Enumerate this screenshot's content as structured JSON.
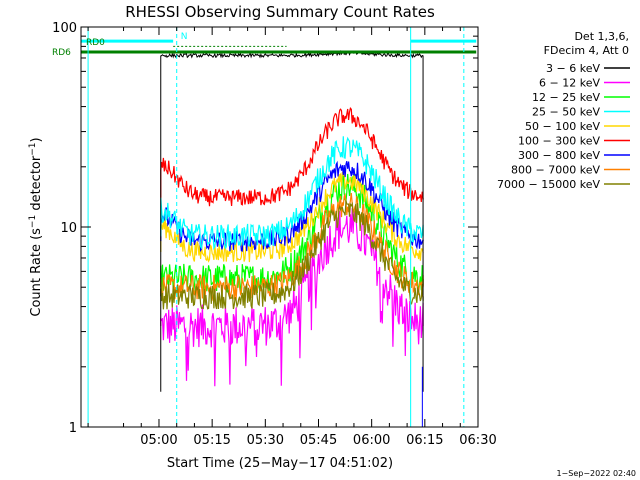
{
  "chart_data": {
    "type": "line",
    "title": "RHESSI Observing Summary Count Rates",
    "xlabel": "Start Time (25−May−17 04:51:02)",
    "ylabel_main": "Count Rate (s",
    "ylabel_sup": "−1",
    "ylabel_rest": " detector",
    "ylabel_sup2": "−1",
    "ylabel_close": ")",
    "footer": "1−Sep−2022 02:40",
    "y_scale": "log",
    "ylim": [
      1,
      100
    ],
    "xlim_minutes": [
      -22,
      90
    ],
    "x_ticks": [
      {
        "m": 0,
        "label": "05:00"
      },
      {
        "m": 15,
        "label": "05:15"
      },
      {
        "m": 30,
        "label": "05:30"
      },
      {
        "m": 45,
        "label": "05:45"
      },
      {
        "m": 60,
        "label": "06:00"
      },
      {
        "m": 75,
        "label": "06:15"
      },
      {
        "m": 90,
        "label": "06:30"
      }
    ],
    "y_ticks": [
      {
        "v": 1,
        "label": "1"
      },
      {
        "v": 10,
        "label": "10"
      },
      {
        "v": 100,
        "label": "100"
      }
    ],
    "legend_header": [
      "Det 1,3,6,",
      "FDecim 4, Att 0"
    ],
    "series": [
      {
        "name": "3 − 6 keV",
        "color": "#000000",
        "base": 72,
        "peak": 74,
        "noise": 0.02
      },
      {
        "name": "6 − 12 keV",
        "color": "#ff00ff",
        "base": 3.2,
        "peak": 10,
        "noise": 0.25
      },
      {
        "name": "12 − 25 keV",
        "color": "#00ff00",
        "base": 5.5,
        "peak": 16,
        "noise": 0.18
      },
      {
        "name": "25 − 50 keV",
        "color": "#00ffff",
        "base": 9,
        "peak": 25,
        "noise": 0.14
      },
      {
        "name": "50 − 100 keV",
        "color": "#ffd700",
        "base": 7.5,
        "peak": 17,
        "noise": 0.12
      },
      {
        "name": "100 − 300 keV",
        "color": "#ff0000",
        "base": 14,
        "peak": 36,
        "noise": 0.1
      },
      {
        "name": "300 − 800 keV",
        "color": "#0000ff",
        "base": 8.5,
        "peak": 20,
        "noise": 0.12
      },
      {
        "name": "800 − 7000 keV",
        "color": "#ff8000",
        "base": 5,
        "peak": 13,
        "noise": 0.15
      },
      {
        "name": "7000 − 15000 keV",
        "color": "#808000",
        "base": 4.5,
        "peak": 12,
        "noise": 0.15
      }
    ],
    "time_window_minutes": [
      0.5,
      74.5
    ],
    "peak_minute": 53,
    "peak_width_minutes": 10,
    "markers": {
      "RD0": {
        "label": "RD0",
        "color": "#00ffff",
        "value": 85
      },
      "RD6": {
        "label": "RD6",
        "color": "#008000",
        "value": 75
      },
      "N": {
        "label": "N",
        "color": "#00ffff"
      }
    },
    "vertical_lines_minutes": {
      "solid": [
        -20,
        71
      ],
      "dashed": [
        5,
        86
      ],
      "blue": [
        74.3
      ]
    },
    "attenuator_segments_minutes": [
      [
        -22,
        4
      ],
      [
        71,
        89.5
      ]
    ],
    "green_bar_minutes": [
      -22,
      89.5
    ]
  }
}
